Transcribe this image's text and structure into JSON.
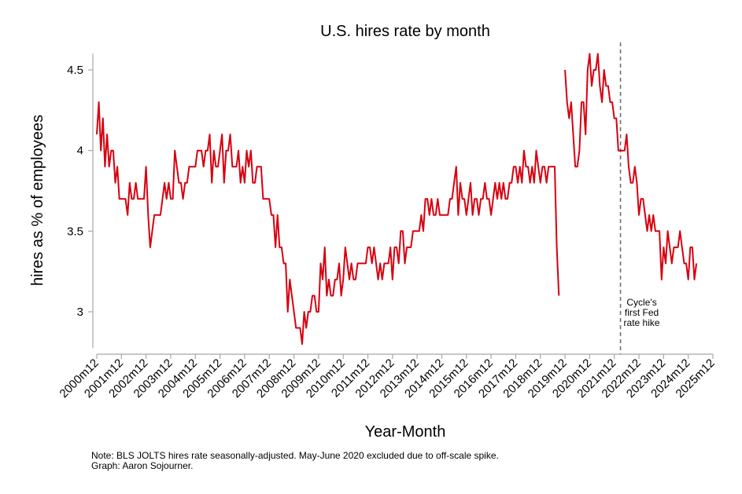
{
  "chart_data": {
    "type": "line",
    "title": "U.S. hires rate by month",
    "xlabel": "Year-Month",
    "ylabel": "hires as % of employees",
    "ylim": [
      2.75,
      4.65
    ],
    "yticks": [
      3,
      3.5,
      4,
      4.5
    ],
    "ytick_labels": [
      "3",
      "3.5",
      "4",
      "4.5"
    ],
    "x_start": "2000m12",
    "x_end": "2025m12",
    "xtick_labels": [
      "2000m12",
      "2001m12",
      "2002m12",
      "2003m12",
      "2004m12",
      "2005m12",
      "2006m12",
      "2007m12",
      "2008m12",
      "2009m12",
      "2010m12",
      "2011m12",
      "2012m12",
      "2013m12",
      "2014m12",
      "2015m12",
      "2016m12",
      "2017m12",
      "2018m12",
      "2019m12",
      "2020m12",
      "2021m12",
      "2022m12",
      "2023m12",
      "2024m12",
      "2025m12"
    ],
    "grid": false,
    "legend": "none",
    "series": [
      {
        "name": "Hires rate (seasonally adjusted)",
        "color": "#d7000f",
        "start": "2000m12",
        "frequency": "monthly",
        "values": [
          4.1,
          4.3,
          4.0,
          4.2,
          3.9,
          4.1,
          3.9,
          4.0,
          4.0,
          3.8,
          3.9,
          3.7,
          3.7,
          3.7,
          3.7,
          3.6,
          3.8,
          3.7,
          3.7,
          3.8,
          3.7,
          3.7,
          3.7,
          3.7,
          3.9,
          3.6,
          3.4,
          3.5,
          3.6,
          3.6,
          3.6,
          3.6,
          3.7,
          3.8,
          3.7,
          3.8,
          3.7,
          3.7,
          4.0,
          3.9,
          3.8,
          3.8,
          3.7,
          3.8,
          3.8,
          3.9,
          3.9,
          3.9,
          3.9,
          4.0,
          4.0,
          4.0,
          3.9,
          4.0,
          4.0,
          4.1,
          3.8,
          4.0,
          3.9,
          3.9,
          4.0,
          4.1,
          3.8,
          4.0,
          4.0,
          4.1,
          3.9,
          3.9,
          3.9,
          4.0,
          3.8,
          3.9,
          3.8,
          4.0,
          3.9,
          4.0,
          3.8,
          3.8,
          3.9,
          3.9,
          3.9,
          3.7,
          3.7,
          3.7,
          3.7,
          3.6,
          3.6,
          3.4,
          3.6,
          3.4,
          3.4,
          3.3,
          3.3,
          3.0,
          3.2,
          3.1,
          3.0,
          2.9,
          2.9,
          2.9,
          2.8,
          3.0,
          2.9,
          3.0,
          3.0,
          3.1,
          3.1,
          3.0,
          3.0,
          3.3,
          3.2,
          3.4,
          3.1,
          3.2,
          3.1,
          3.1,
          3.2,
          3.2,
          3.3,
          3.1,
          3.2,
          3.4,
          3.3,
          3.2,
          3.3,
          3.2,
          3.2,
          3.3,
          3.3,
          3.3,
          3.3,
          3.3,
          3.4,
          3.4,
          3.3,
          3.4,
          3.3,
          3.2,
          3.3,
          3.2,
          3.3,
          3.3,
          3.3,
          3.4,
          3.2,
          3.4,
          3.4,
          3.3,
          3.5,
          3.5,
          3.3,
          3.4,
          3.4,
          3.4,
          3.5,
          3.5,
          3.5,
          3.5,
          3.6,
          3.5,
          3.7,
          3.7,
          3.6,
          3.7,
          3.6,
          3.6,
          3.7,
          3.6,
          3.6,
          3.6,
          3.6,
          3.6,
          3.7,
          3.7,
          3.8,
          3.9,
          3.6,
          3.8,
          3.7,
          3.7,
          3.6,
          3.7,
          3.8,
          3.6,
          3.7,
          3.7,
          3.6,
          3.7,
          3.7,
          3.8,
          3.7,
          3.7,
          3.6,
          3.7,
          3.8,
          3.7,
          3.8,
          3.7,
          3.8,
          3.7,
          3.7,
          3.8,
          3.8,
          3.9,
          3.9,
          3.8,
          3.9,
          3.8,
          4.0,
          3.9,
          3.9,
          3.8,
          3.9,
          3.8,
          4.0,
          3.9,
          3.8,
          3.9,
          3.9,
          3.8,
          3.9,
          3.9,
          3.9,
          3.9,
          3.4,
          3.1,
          null,
          null,
          4.5,
          4.3,
          4.2,
          4.3,
          4.1,
          3.9,
          3.9,
          4.0,
          4.3,
          4.3,
          4.1,
          4.5,
          4.6,
          4.4,
          4.5,
          4.5,
          4.6,
          4.4,
          4.3,
          4.5,
          4.4,
          4.4,
          4.3,
          4.3,
          4.2,
          4.2,
          4.0,
          4.0,
          4.0,
          4.0,
          4.1,
          3.9,
          3.8,
          3.8,
          3.9,
          3.8,
          3.6,
          3.7,
          3.7,
          3.6,
          3.5,
          3.6,
          3.5,
          3.6,
          3.5,
          3.5,
          3.5,
          3.2,
          3.4,
          3.3,
          3.5,
          3.4,
          3.3,
          3.4,
          3.4,
          3.4,
          3.5,
          3.4,
          3.3,
          3.3,
          3.2,
          3.4,
          3.4,
          3.2,
          3.3
        ]
      }
    ],
    "annotations": [
      {
        "type": "vertical-dashed-line",
        "x": "2022m3",
        "label_lines": [
          "Cycle's",
          "first Fed",
          "rate hike"
        ]
      }
    ],
    "note_lines": [
      "Note: BLS JOLTS hires rate seasonally-adjusted. May-June 2020 excluded due to off-scale spike.",
      "Graph: Aaron Sojourner."
    ]
  }
}
